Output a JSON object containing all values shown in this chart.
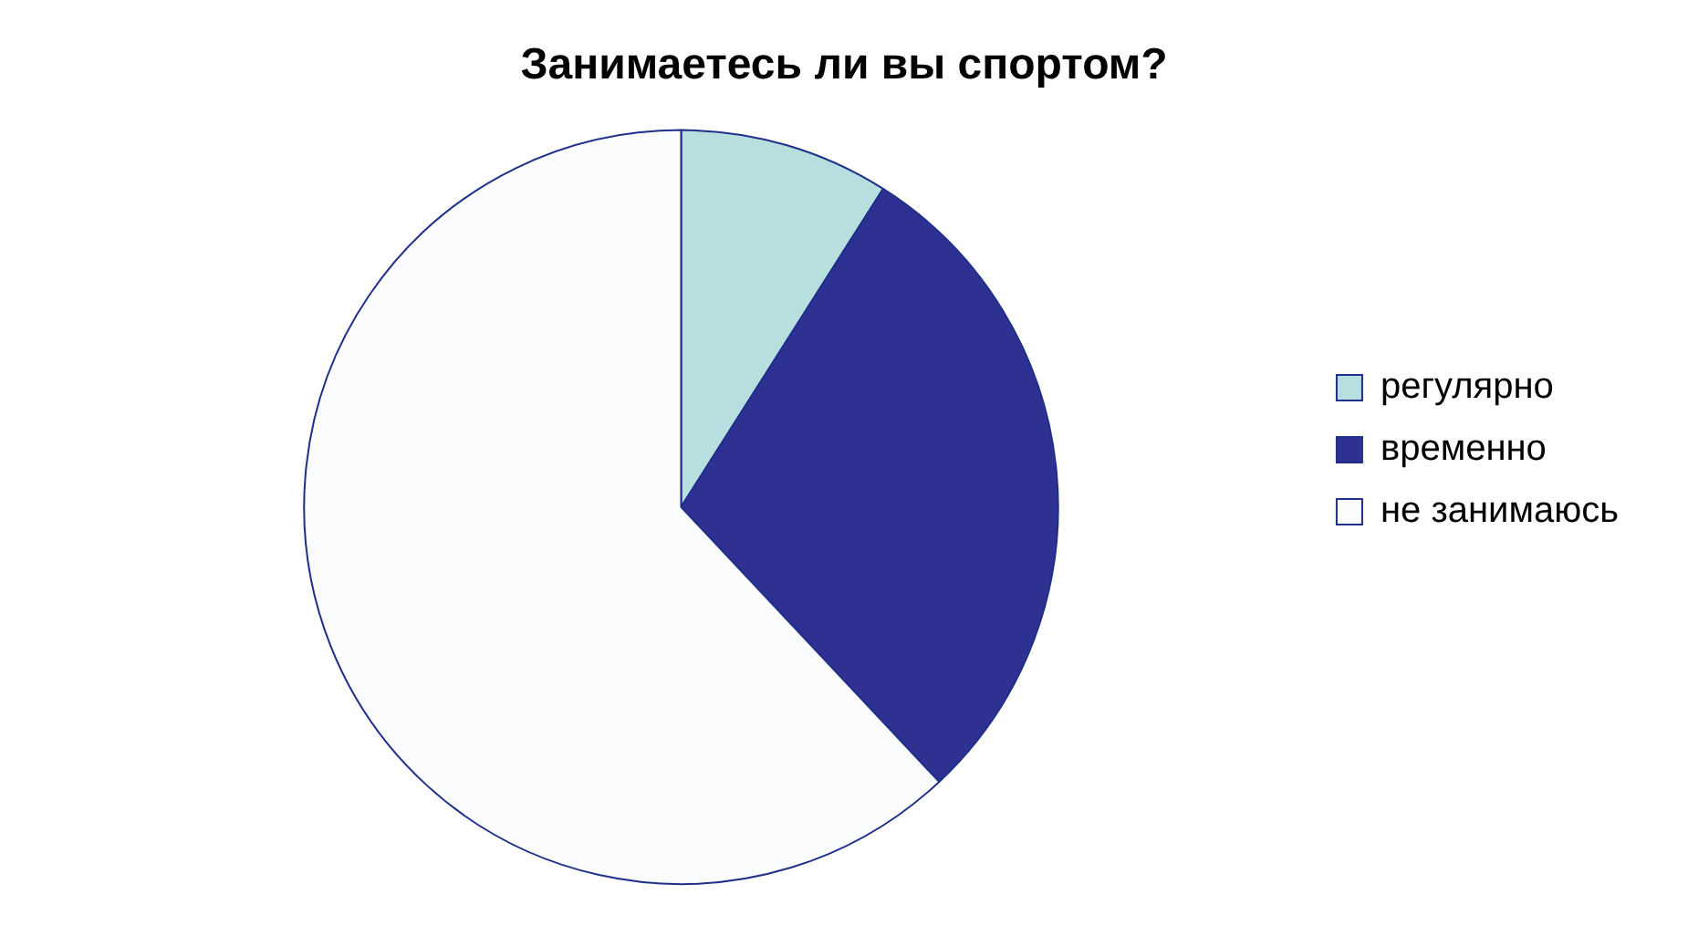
{
  "chart_data": {
    "type": "pie",
    "title": "Занимаетесь ли вы спортом?",
    "categories": [
      "регулярно",
      "временно",
      "не занимаюсь"
    ],
    "values": [
      9,
      29,
      62
    ],
    "colors": [
      "#b7dfe0",
      "#2e3192",
      "#fbfcfe"
    ],
    "legend": "right"
  }
}
